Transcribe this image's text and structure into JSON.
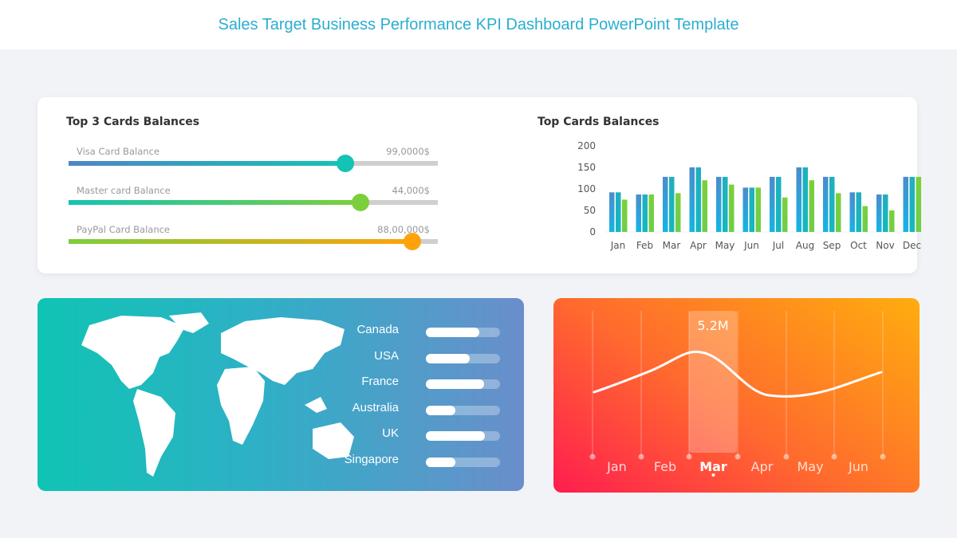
{
  "header": {
    "title": "Sales Target Business Performance KPI Dashboard PowerPoint Template"
  },
  "balances": {
    "title": "Top 3 Cards Balances",
    "items": [
      {
        "label": "Visa Card Balance",
        "value": "99,0000$",
        "fraction": 0.75,
        "colors": [
          "#4f86c6",
          "#13c3b4"
        ]
      },
      {
        "label": "Master card Balance",
        "value": "44,000$",
        "fraction": 0.79,
        "colors": [
          "#13c3b4",
          "#7ccf3c"
        ]
      },
      {
        "label": "PayPal Card Balance",
        "value": "88,00,000$",
        "fraction": 0.93,
        "colors": [
          "#7ccf3c",
          "#ffa20c"
        ]
      }
    ]
  },
  "chart_data": [
    {
      "type": "bar",
      "title": "Top Cards Balances",
      "categories": [
        "Jan",
        "Feb",
        "Mar",
        "Apr",
        "May",
        "Jun",
        "Jul",
        "Aug",
        "Sep",
        "Oct",
        "Nov",
        "Dec"
      ],
      "series": [
        {
          "values": [
            92,
            87,
            128,
            150,
            128,
            103,
            128,
            150,
            128,
            92,
            87,
            128
          ],
          "color": "#2aa6e0"
        },
        {
          "values": [
            92,
            87,
            128,
            150,
            128,
            103,
            128,
            150,
            128,
            92,
            87,
            128
          ],
          "color": "#14b8bf"
        },
        {
          "values": [
            75,
            87,
            90,
            120,
            110,
            103,
            80,
            120,
            90,
            60,
            50,
            128
          ],
          "color": "#6fcd4b"
        }
      ],
      "yticks": [
        0,
        50,
        100,
        150,
        200
      ],
      "ylim": [
        0,
        200
      ],
      "grid": false
    },
    {
      "type": "line",
      "categories": [
        "Jan",
        "Feb",
        "Mar",
        "Apr",
        "May",
        "Jun"
      ],
      "highlight": {
        "category": "Mar",
        "label": "5.2M"
      },
      "color": "#ffffff"
    }
  ],
  "countries": [
    {
      "name": "Canada",
      "fraction": 0.72
    },
    {
      "name": "USA",
      "fraction": 0.59
    },
    {
      "name": "France",
      "fraction": 0.79
    },
    {
      "name": "Australia",
      "fraction": 0.4
    },
    {
      "name": "UK",
      "fraction": 0.8
    },
    {
      "name": "Singapore",
      "fraction": 0.4
    }
  ]
}
